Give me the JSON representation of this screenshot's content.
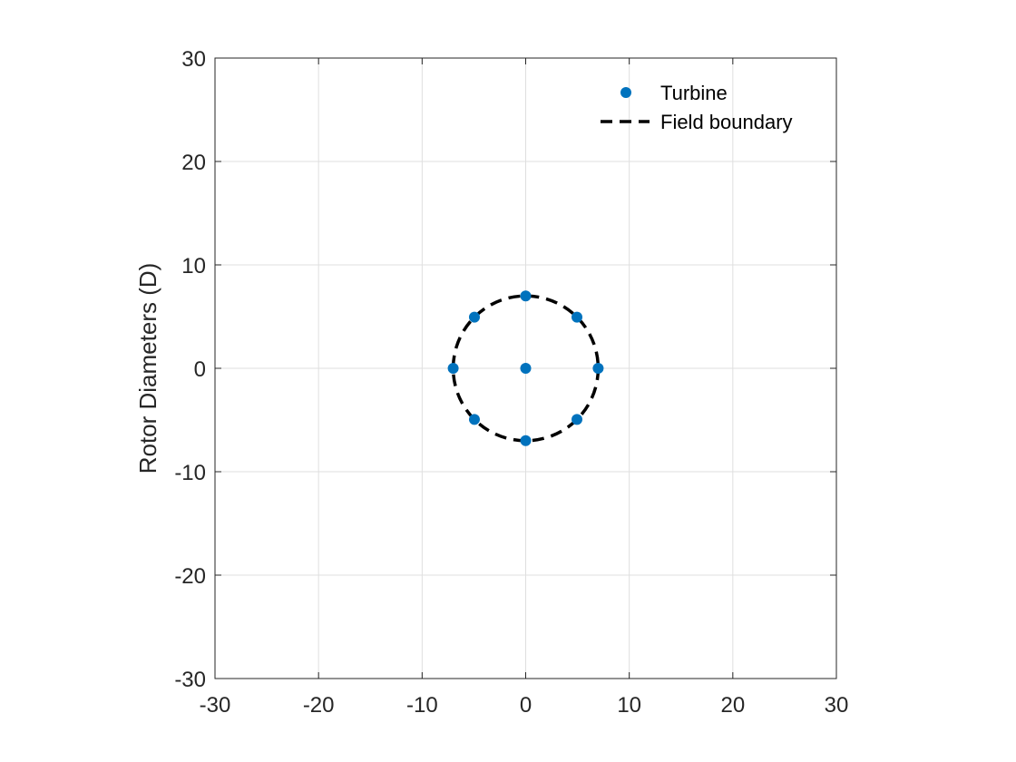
{
  "chart_data": {
    "type": "scatter",
    "title": "",
    "xlabel": "",
    "ylabel": "Rotor Diameters (D)",
    "xlim": [
      -30,
      30
    ],
    "ylim": [
      -30,
      30
    ],
    "xticks": [
      "-30",
      "-20",
      "-10",
      "0",
      "10",
      "20",
      "30"
    ],
    "yticks": [
      "-30",
      "-20",
      "-10",
      "0",
      "10",
      "20",
      "30"
    ],
    "grid": true,
    "legend_position": "top-right",
    "series": [
      {
        "name": "Turbine",
        "marker": "filled-circle",
        "color": "#0072BD",
        "points": [
          {
            "x": 0,
            "y": 0
          },
          {
            "x": 0,
            "y": 7
          },
          {
            "x": 4.95,
            "y": 4.95
          },
          {
            "x": 7,
            "y": 0
          },
          {
            "x": 4.95,
            "y": -4.95
          },
          {
            "x": 0,
            "y": -7
          },
          {
            "x": -4.95,
            "y": -4.95
          },
          {
            "x": -7,
            "y": 0
          },
          {
            "x": -4.95,
            "y": 4.95
          }
        ]
      },
      {
        "name": "Field boundary",
        "line_style": "dashed",
        "color": "#000000",
        "shape": "circle",
        "center": {
          "x": 0,
          "y": 0
        },
        "radius": 7
      }
    ]
  }
}
